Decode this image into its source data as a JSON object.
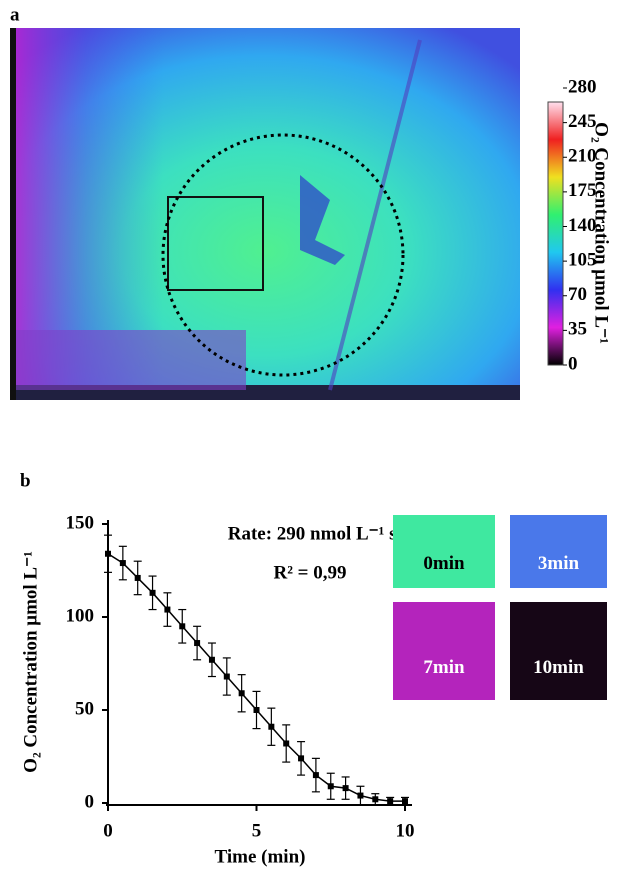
{
  "chart_data": [
    {
      "type": "colorbar",
      "panel_label": "a",
      "title": "O₂ Concentration  μmol L⁻¹",
      "colormap": [
        "#000000",
        "#e020e0",
        "#3030f0",
        "#20c8f0",
        "#30f070",
        "#f0e020",
        "#f02020",
        "#ffe0ee"
      ],
      "ylim": [
        0,
        280
      ],
      "yticks": [
        0,
        35,
        70,
        105,
        140,
        175,
        210,
        245,
        280
      ]
    },
    {
      "type": "line",
      "panel_label": "b",
      "x_label": "Time (min)",
      "y_label": "O₂ Concentration  μmol L⁻¹",
      "annotations": [
        "Rate: 290 nmol L⁻¹ s⁻¹",
        "R² = 0,99"
      ],
      "x": [
        0,
        0.5,
        1,
        1.5,
        2,
        2.5,
        3,
        3.5,
        4,
        4.5,
        5,
        5.5,
        6,
        6.5,
        7,
        7.5,
        8,
        8.5,
        9,
        9.5,
        10
      ],
      "series": [
        {
          "color": "#000000",
          "values": [
            134,
            129,
            121,
            113,
            104,
            95,
            86,
            77,
            68,
            59,
            50,
            41,
            32,
            24,
            15,
            9,
            8,
            4,
            2,
            1,
            1
          ],
          "errors": [
            10,
            9,
            9,
            9,
            9,
            9,
            9,
            9,
            10,
            10,
            10,
            10,
            10,
            9,
            9,
            7,
            6,
            5,
            3,
            2,
            2
          ]
        }
      ],
      "xlim": [
        0,
        10
      ],
      "xticks": [
        0,
        5,
        10
      ],
      "ylim": [
        0,
        150
      ],
      "yticks": [
        0,
        50,
        100,
        150
      ],
      "insets": [
        {
          "label": "0min",
          "color": "#3fe8a0"
        },
        {
          "label": "3min",
          "color": "#4a78ea"
        },
        {
          "label": "7min",
          "color": "#b424bc"
        },
        {
          "label": "10min",
          "color": "#160616"
        }
      ]
    }
  ]
}
